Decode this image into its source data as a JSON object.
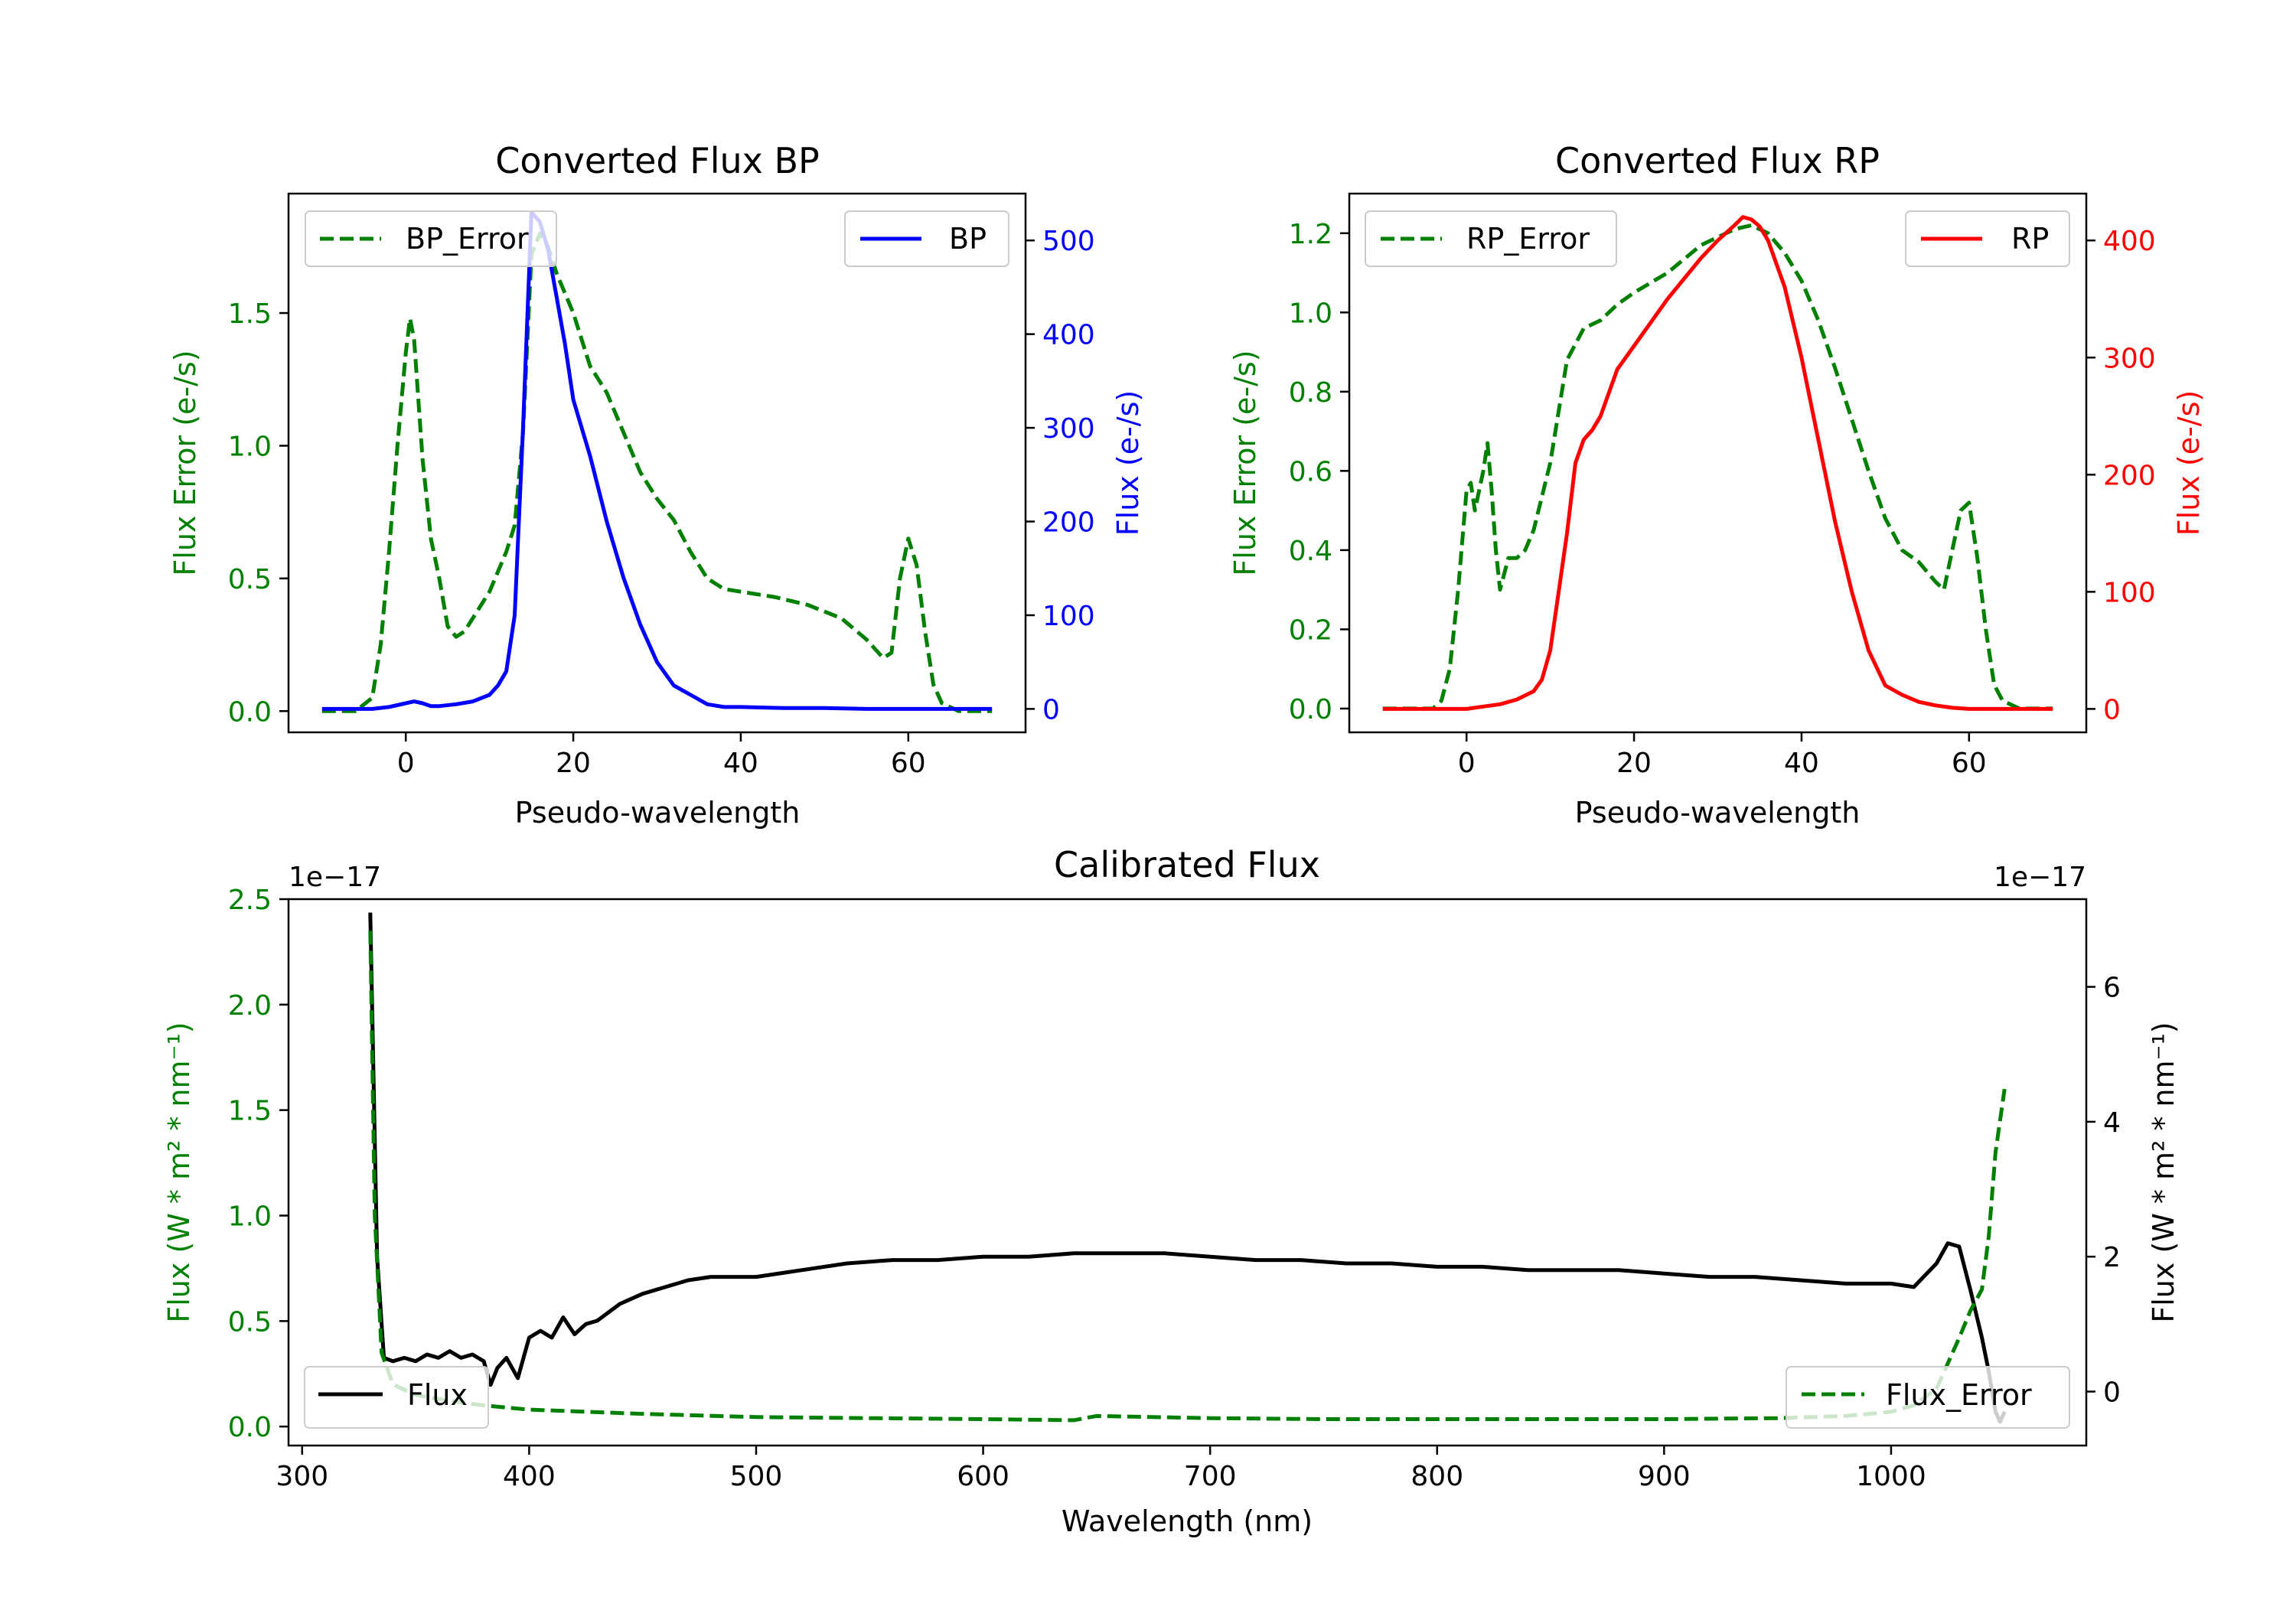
{
  "colors": {
    "error": "#008000",
    "bp": "#0000ff",
    "rp": "#ff0000",
    "flux": "#000000",
    "axis": "#000000"
  },
  "chart_data": [
    {
      "id": "bp",
      "type": "line",
      "title": "Converted Flux BP",
      "xlabel": "Pseudo-wavelength",
      "ylabel_left": "Flux Error (e-/s)",
      "ylabel_right": "Flux (e-/s)",
      "xlim": [
        -14,
        74
      ],
      "ylim_left": [
        -0.08,
        1.95
      ],
      "ylim_right": [
        -25,
        550
      ],
      "xticks": [
        0,
        20,
        40,
        60
      ],
      "yticks_left": [
        0.0,
        0.5,
        1.0,
        1.5
      ],
      "yticks_right": [
        0,
        100,
        200,
        300,
        400,
        500
      ],
      "xtick_labels": [
        "0",
        "20",
        "40",
        "60"
      ],
      "ytick_labels_left": [
        "0.0",
        "0.5",
        "1.0",
        "1.5"
      ],
      "ytick_labels_right": [
        "0",
        "100",
        "200",
        "300",
        "400",
        "500"
      ],
      "legend_left": "BP_Error",
      "legend_right": "BP",
      "series": [
        {
          "name": "BP_Error",
          "axis": "left",
          "style": "dashed",
          "color": "#008000",
          "x": [
            -10,
            -6,
            -4,
            -3,
            -2,
            -1,
            0,
            0.5,
            1,
            2,
            3,
            4,
            5,
            6,
            7,
            8,
            10,
            12,
            13,
            14,
            15,
            16,
            17,
            18,
            20,
            22,
            24,
            26,
            28,
            30,
            32,
            34,
            36,
            38,
            40,
            44,
            48,
            52,
            55,
            57,
            58,
            59,
            60,
            61,
            62,
            63,
            64,
            66,
            70
          ],
          "y": [
            0.0,
            0.0,
            0.05,
            0.25,
            0.6,
            1.0,
            1.35,
            1.48,
            1.4,
            0.95,
            0.65,
            0.5,
            0.32,
            0.28,
            0.3,
            0.35,
            0.45,
            0.6,
            0.7,
            1.05,
            1.72,
            1.8,
            1.75,
            1.65,
            1.5,
            1.3,
            1.2,
            1.05,
            0.9,
            0.8,
            0.72,
            0.6,
            0.5,
            0.46,
            0.45,
            0.43,
            0.4,
            0.35,
            0.27,
            0.2,
            0.22,
            0.5,
            0.65,
            0.55,
            0.3,
            0.1,
            0.03,
            0.0,
            0.0
          ]
        },
        {
          "name": "BP",
          "axis": "right",
          "style": "solid",
          "color": "#0000ff",
          "x": [
            -10,
            -4,
            -2,
            0,
            1,
            2,
            3,
            4,
            6,
            8,
            10,
            11,
            12,
            13,
            14,
            15,
            16,
            17,
            18,
            19,
            20,
            22,
            24,
            26,
            28,
            30,
            32,
            34,
            36,
            38,
            40,
            45,
            50,
            55,
            60,
            65,
            70
          ],
          "y": [
            0,
            0,
            2,
            6,
            8,
            6,
            3,
            3,
            5,
            8,
            15,
            25,
            40,
            100,
            300,
            530,
            520,
            490,
            440,
            390,
            330,
            270,
            200,
            140,
            90,
            50,
            25,
            15,
            5,
            2,
            2,
            1,
            1,
            0,
            0,
            0,
            0
          ]
        }
      ]
    },
    {
      "id": "rp",
      "type": "line",
      "title": "Converted Flux RP",
      "xlabel": "Pseudo-wavelength",
      "ylabel_left": "Flux Error (e-/s)",
      "ylabel_right": "Flux (e-/s)",
      "xlim": [
        -14,
        74
      ],
      "ylim_left": [
        -0.06,
        1.3
      ],
      "ylim_right": [
        -20,
        440
      ],
      "xticks": [
        0,
        20,
        40,
        60
      ],
      "yticks_left": [
        0.0,
        0.2,
        0.4,
        0.6,
        0.8,
        1.0,
        1.2
      ],
      "yticks_right": [
        0,
        100,
        200,
        300,
        400
      ],
      "xtick_labels": [
        "0",
        "20",
        "40",
        "60"
      ],
      "ytick_labels_left": [
        "0.0",
        "0.2",
        "0.4",
        "0.6",
        "0.8",
        "1.0",
        "1.2"
      ],
      "ytick_labels_right": [
        "0",
        "100",
        "200",
        "300",
        "400"
      ],
      "legend_left": "RP_Error",
      "legend_right": "RP",
      "series": [
        {
          "name": "RP_Error",
          "axis": "left",
          "style": "dashed",
          "color": "#008000",
          "x": [
            -10,
            -4,
            -3,
            -2,
            -1,
            0,
            0.5,
            1,
            2,
            2.5,
            3,
            3.5,
            4,
            5,
            6,
            7,
            8,
            10,
            12,
            14,
            16,
            18,
            20,
            24,
            28,
            32,
            34,
            36,
            38,
            40,
            42,
            44,
            46,
            48,
            50,
            52,
            54,
            56,
            57,
            58,
            59,
            60,
            61,
            62,
            63,
            64,
            66,
            70
          ],
          "y": [
            0.0,
            0.0,
            0.02,
            0.1,
            0.3,
            0.55,
            0.57,
            0.5,
            0.6,
            0.67,
            0.55,
            0.4,
            0.3,
            0.38,
            0.38,
            0.4,
            0.45,
            0.62,
            0.88,
            0.96,
            0.98,
            1.02,
            1.05,
            1.1,
            1.17,
            1.21,
            1.22,
            1.2,
            1.15,
            1.08,
            0.98,
            0.86,
            0.73,
            0.6,
            0.48,
            0.4,
            0.37,
            0.32,
            0.3,
            0.4,
            0.5,
            0.52,
            0.38,
            0.2,
            0.06,
            0.02,
            0.0,
            0.0
          ]
        },
        {
          "name": "RP",
          "axis": "right",
          "style": "solid",
          "color": "#ff0000",
          "x": [
            -10,
            0,
            2,
            4,
            6,
            8,
            9,
            10,
            11,
            12,
            13,
            14,
            15,
            16,
            18,
            20,
            24,
            28,
            30,
            32,
            33,
            34,
            35,
            36,
            38,
            40,
            42,
            44,
            46,
            48,
            50,
            52,
            54,
            56,
            58,
            60,
            65,
            70
          ],
          "y": [
            0,
            0,
            2,
            4,
            8,
            15,
            25,
            50,
            100,
            150,
            210,
            230,
            238,
            250,
            290,
            310,
            350,
            385,
            400,
            413,
            420,
            418,
            412,
            400,
            360,
            300,
            230,
            160,
            100,
            50,
            20,
            12,
            6,
            3,
            1,
            0,
            0,
            0
          ]
        }
      ]
    },
    {
      "id": "calibrated",
      "type": "line",
      "title": "Calibrated Flux",
      "xlabel": "Wavelength (nm)",
      "ylabel_left": "Flux (W * m² * nm⁻¹)",
      "ylabel_right": "Flux (W * m² * nm⁻¹)",
      "offset_left": "1e−17",
      "offset_right": "1e−17",
      "xlim": [
        294,
        1086
      ],
      "ylim_left": [
        -0.09,
        2.5
      ],
      "ylim_right": [
        -0.8,
        7.3
      ],
      "xticks": [
        300,
        400,
        500,
        600,
        700,
        800,
        900,
        1000
      ],
      "yticks_left": [
        0.0,
        0.5,
        1.0,
        1.5,
        2.0,
        2.5
      ],
      "yticks_right": [
        0,
        2,
        4,
        6
      ],
      "xtick_labels": [
        "300",
        "400",
        "500",
        "600",
        "700",
        "800",
        "900",
        "1000"
      ],
      "ytick_labels_left": [
        "0.0",
        "0.5",
        "1.0",
        "1.5",
        "2.0",
        "2.5"
      ],
      "ytick_labels_right": [
        "0",
        "2",
        "4",
        "6"
      ],
      "legend_left": "Flux",
      "legend_right": "Flux_Error",
      "series": [
        {
          "name": "Flux",
          "axis": "right",
          "style": "solid",
          "color": "#000000",
          "x": [
            330,
            333,
            336,
            340,
            345,
            350,
            355,
            360,
            365,
            370,
            375,
            380,
            383,
            386,
            390,
            395,
            400,
            405,
            410,
            415,
            420,
            425,
            430,
            440,
            450,
            460,
            470,
            480,
            490,
            500,
            520,
            540,
            560,
            580,
            600,
            620,
            640,
            660,
            680,
            700,
            720,
            740,
            760,
            780,
            800,
            820,
            840,
            860,
            880,
            900,
            920,
            940,
            960,
            980,
            1000,
            1010,
            1020,
            1025,
            1030,
            1035,
            1040,
            1043,
            1046,
            1048,
            1050
          ],
          "y": [
            7.1,
            2.0,
            0.5,
            0.45,
            0.5,
            0.45,
            0.55,
            0.5,
            0.6,
            0.5,
            0.55,
            0.45,
            0.1,
            0.35,
            0.5,
            0.2,
            0.8,
            0.9,
            0.8,
            1.1,
            0.85,
            1.0,
            1.05,
            1.3,
            1.45,
            1.55,
            1.65,
            1.7,
            1.7,
            1.7,
            1.8,
            1.9,
            1.95,
            1.95,
            2.0,
            2.0,
            2.05,
            2.05,
            2.05,
            2.0,
            1.95,
            1.95,
            1.9,
            1.9,
            1.85,
            1.85,
            1.8,
            1.8,
            1.8,
            1.75,
            1.7,
            1.7,
            1.65,
            1.6,
            1.6,
            1.55,
            1.9,
            2.2,
            2.15,
            1.5,
            0.8,
            0.3,
            -0.3,
            -0.45,
            -0.3
          ]
        },
        {
          "name": "Flux_Error",
          "axis": "left",
          "style": "dashed",
          "color": "#008000",
          "x": [
            330,
            332,
            335,
            340,
            350,
            360,
            380,
            400,
            450,
            500,
            550,
            600,
            640,
            650,
            700,
            750,
            800,
            850,
            900,
            950,
            980,
            1000,
            1010,
            1020,
            1025,
            1030,
            1035,
            1040,
            1043,
            1046,
            1050
          ],
          "y": [
            2.35,
            1.0,
            0.35,
            0.2,
            0.15,
            0.13,
            0.1,
            0.08,
            0.06,
            0.045,
            0.04,
            0.035,
            0.03,
            0.05,
            0.04,
            0.035,
            0.035,
            0.035,
            0.035,
            0.04,
            0.05,
            0.07,
            0.1,
            0.18,
            0.3,
            0.42,
            0.55,
            0.65,
            0.9,
            1.3,
            1.6
          ]
        }
      ]
    }
  ]
}
